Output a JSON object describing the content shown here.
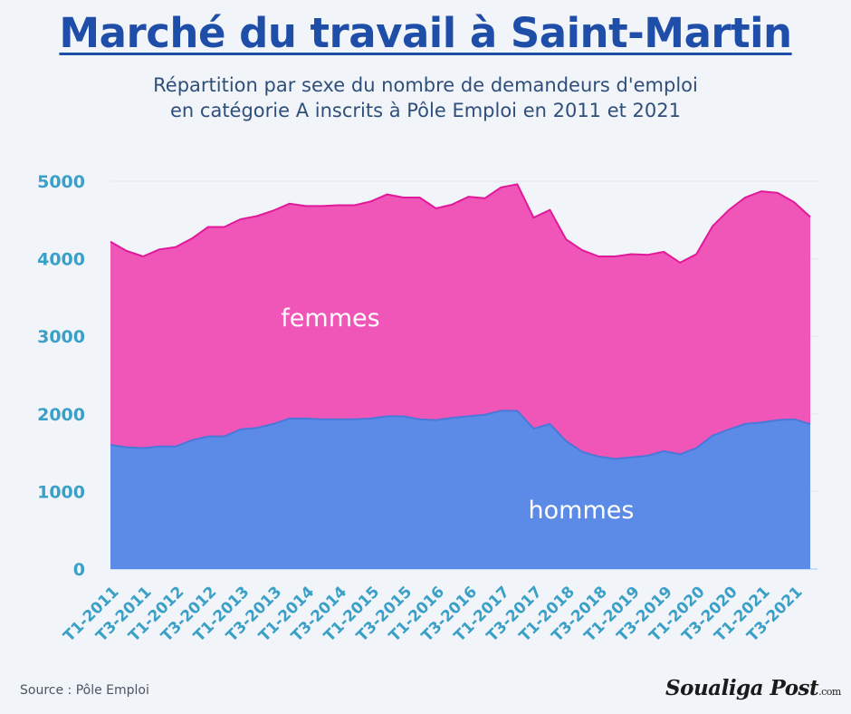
{
  "header": {
    "title": "Marché du travail à Saint-Martin",
    "subtitle_line1": "Répartition par sexe du nombre de demandeurs d'emploi",
    "subtitle_line2": "en catégorie A inscrits à Pôle Emploi en 2011 et 2021"
  },
  "footer": {
    "source": "Source : Pôle Emploi",
    "logo_main": "Soualiga Post",
    "logo_suffix": ".com"
  },
  "colors": {
    "background": "#f1f4f8",
    "hommes_fill": "#5b8be6",
    "hommes_line": "#4a78d8",
    "femmes_fill": "#f056b8",
    "femmes_line": "#e0199a",
    "title": "#1f4ea8",
    "ticks": "#3aa0c8"
  },
  "chart_data": {
    "type": "area",
    "stacked": true,
    "ylim": [
      0,
      5000
    ],
    "yticks": [
      0,
      1000,
      2000,
      3000,
      4000,
      5000
    ],
    "grid": true,
    "x": [
      "T1-2011",
      "T2-2011",
      "T3-2011",
      "T4-2011",
      "T1-2012",
      "T2-2012",
      "T3-2012",
      "T4-2012",
      "T1-2013",
      "T2-2013",
      "T3-2013",
      "T4-2013",
      "T1-2014",
      "T2-2014",
      "T3-2014",
      "T4-2014",
      "T1-2015",
      "T2-2015",
      "T3-2015",
      "T4-2015",
      "T1-2016",
      "T2-2016",
      "T3-2016",
      "T4-2016",
      "T1-2017",
      "T2-2017",
      "T3-2017",
      "T4-2017",
      "T1-2018",
      "T2-2018",
      "T3-2018",
      "T4-2018",
      "T1-2019",
      "T2-2019",
      "T3-2019",
      "T4-2019",
      "T1-2020",
      "T2-2020",
      "T3-2020",
      "T4-2020",
      "T1-2021",
      "T2-2021",
      "T3-2021",
      "T4-2021"
    ],
    "xtick_labels": [
      "T1-2011",
      "T3-2011",
      "T1-2012",
      "T3-2012",
      "T1-2013",
      "T3-2013",
      "T1-2014",
      "T3-2014",
      "T1-2015",
      "T3-2015",
      "T1-2016",
      "T3-2016",
      "T1-2017",
      "T3-2017",
      "T1-2018",
      "T3-2018",
      "T1-2019",
      "T3-2019",
      "T1-2020",
      "T3-2020",
      "T1-2021",
      "T3-2021"
    ],
    "series": [
      {
        "name": "hommes",
        "values": [
          1600,
          1570,
          1560,
          1580,
          1580,
          1660,
          1710,
          1710,
          1800,
          1820,
          1870,
          1940,
          1940,
          1930,
          1930,
          1930,
          1940,
          1970,
          1970,
          1930,
          1920,
          1950,
          1970,
          1990,
          2040,
          2040,
          1810,
          1870,
          1650,
          1510,
          1450,
          1420,
          1440,
          1460,
          1520,
          1480,
          1560,
          1720,
          1800,
          1870,
          1890,
          1920,
          1930,
          1870
        ]
      },
      {
        "name": "femmes",
        "values": [
          2620,
          2530,
          2470,
          2540,
          2570,
          2600,
          2700,
          2700,
          2710,
          2730,
          2750,
          2770,
          2740,
          2750,
          2760,
          2760,
          2800,
          2860,
          2820,
          2860,
          2730,
          2750,
          2830,
          2790,
          2880,
          2920,
          2720,
          2760,
          2600,
          2600,
          2580,
          2610,
          2620,
          2590,
          2570,
          2470,
          2500,
          2700,
          2830,
          2920,
          2980,
          2930,
          2800,
          2670
        ]
      }
    ]
  }
}
